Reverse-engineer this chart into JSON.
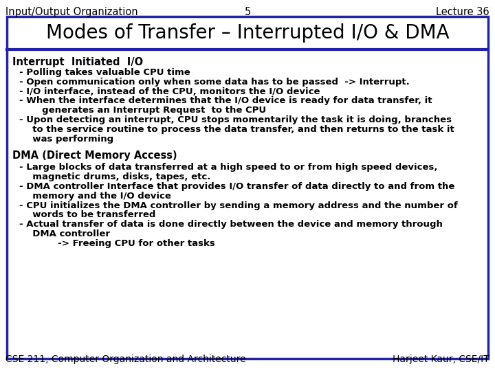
{
  "header_left": "Input/Output Organization",
  "header_center": "5",
  "header_right": "Lecture 36",
  "title": "Modes of Transfer – Interrupted I/O & DMA",
  "footer_left": "CSE 211, Computer Organization and Architecture",
  "footer_right": "Harjeet Kaur, CSE/IT",
  "section1_heading": "Interrupt  Initiated  I/O",
  "section1_bullets": [
    "- Polling takes valuable CPU time",
    "- Open communication only when some data has to be passed  -> Interrupt.",
    "- I/O interface, instead of the CPU, monitors the I/O device",
    "- When the interface determines that the I/O device is ready for data transfer, it\n     generates an Interrupt Request  to the CPU",
    "- Upon detecting an interrupt, CPU stops momentarily the task it is doing, branches\n  to the service routine to process the data transfer, and then returns to the task it\n  was performing"
  ],
  "section2_heading": "DMA (Direct Memory Access)",
  "section2_bullets": [
    "- Large blocks of data transferred at a high speed to or from high speed devices,\n  magnetic drums, disks, tapes, etc.",
    "- DMA controller Interface that provides I/O transfer of data directly to and from the\n  memory and the I/O device",
    "- CPU initializes the DMA controller by sending a memory address and the number of\n  words to be transferred",
    "- Actual transfer of data is done directly between the device and memory through\n  DMA controller\n          -> Freeing CPU for other tasks"
  ],
  "bg_color": "#ffffff",
  "box_border_color": "#2222aa",
  "title_bg": "#ffffff",
  "title_color": "#000000",
  "text_color": "#000000",
  "header_fontsize": 10.5,
  "title_fontsize": 20,
  "body_fontsize": 9.5,
  "heading_fontsize": 10.5,
  "footer_fontsize": 10
}
